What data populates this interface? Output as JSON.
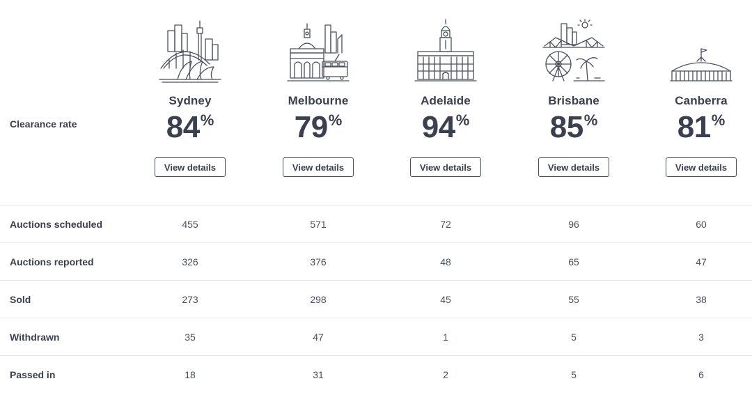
{
  "clearance_label": "Clearance rate",
  "cities": [
    {
      "name": "Sydney",
      "rate": "84",
      "unit": "%",
      "button": "View details",
      "icon": "sydney-opera-house-harbour-bridge-icon"
    },
    {
      "name": "Melbourne",
      "rate": "79",
      "unit": "%",
      "button": "View details",
      "icon": "melbourne-flinders-station-tram-icon"
    },
    {
      "name": "Adelaide",
      "rate": "94",
      "unit": "%",
      "button": "View details",
      "icon": "adelaide-town-hall-icon"
    },
    {
      "name": "Brisbane",
      "rate": "85",
      "unit": "%",
      "button": "View details",
      "icon": "brisbane-story-bridge-wheel-icon"
    },
    {
      "name": "Canberra",
      "rate": "81",
      "unit": "%",
      "button": "View details",
      "icon": "canberra-parliament-house-icon"
    }
  ],
  "rows": [
    {
      "label": "Auctions scheduled",
      "values": [
        "455",
        "571",
        "72",
        "96",
        "60"
      ]
    },
    {
      "label": "Auctions reported",
      "values": [
        "326",
        "376",
        "48",
        "65",
        "47"
      ]
    },
    {
      "label": "Sold",
      "values": [
        "273",
        "298",
        "45",
        "55",
        "38"
      ]
    },
    {
      "label": "Withdrawn",
      "values": [
        "35",
        "47",
        "1",
        "5",
        "3"
      ]
    },
    {
      "label": "Passed in",
      "values": [
        "18",
        "31",
        "2",
        "5",
        "6"
      ]
    }
  ]
}
